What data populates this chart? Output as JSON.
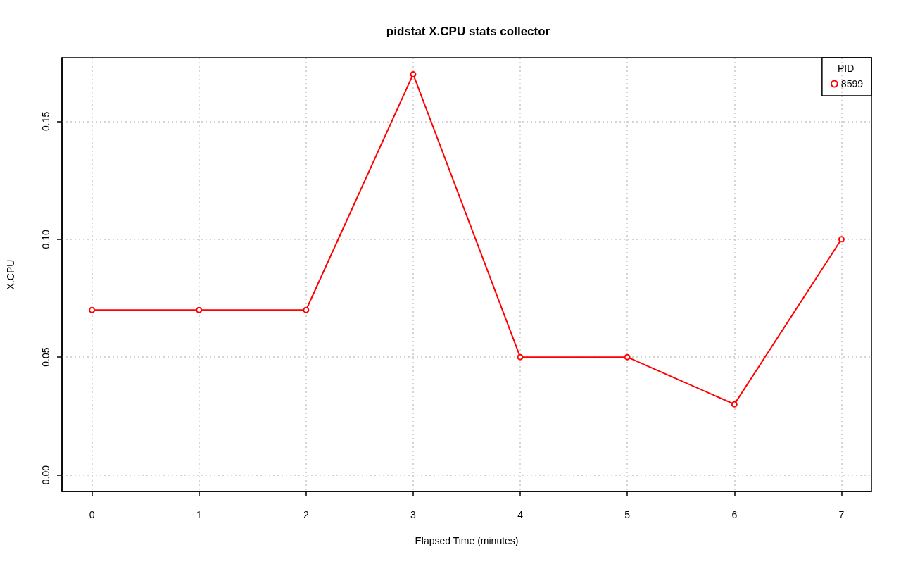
{
  "chart_data": {
    "type": "line",
    "title": "pidstat X.CPU stats collector",
    "xlabel": "Elapsed Time (minutes)",
    "ylabel": "X.CPU",
    "legend_title": "PID",
    "x": [
      0,
      1,
      2,
      3,
      4,
      5,
      6,
      7
    ],
    "series": [
      {
        "name": "8599",
        "color": "#ff0000",
        "values": [
          0.07,
          0.07,
          0.07,
          0.17,
          0.05,
          0.05,
          0.03,
          0.1
        ]
      }
    ],
    "xlim": [
      -0.28,
      7.28
    ],
    "xticks": [
      0,
      1,
      2,
      3,
      4,
      5,
      6,
      7
    ],
    "ylim": [
      -0.007,
      0.177
    ],
    "yticks": [
      {
        "value": 0,
        "label": "0.00"
      },
      0.05,
      {
        "value": 0.1,
        "label": "0.10"
      },
      0.15
    ],
    "grid": true,
    "legend": "top right",
    "marker": "circle",
    "line_style": "solid"
  }
}
